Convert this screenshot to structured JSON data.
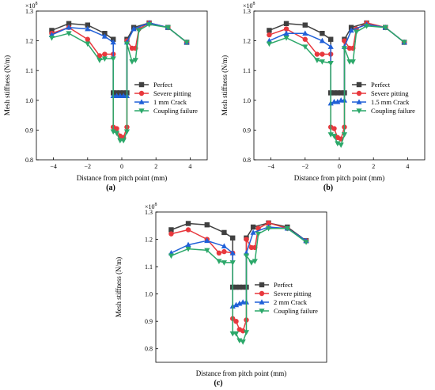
{
  "chart_data": [
    {
      "type": "line",
      "panel_label": "(a)",
      "xlabel": "Distance from pitch point (mm)",
      "ylabel": "Mesh stiffness (N/m)",
      "y_multiplier": "×10",
      "y_multiplier_exp": "8",
      "xlim": [
        -5,
        5
      ],
      "ylim": [
        0.8,
        1.3
      ],
      "xticks": [
        -4,
        -2,
        0,
        2,
        4
      ],
      "xtick_labels": [
        "−4",
        "−2",
        "0",
        "2",
        "4"
      ],
      "yticks": [
        0.8,
        0.9,
        1.0,
        1.1,
        1.2,
        1.3
      ],
      "ytick_labels": [
        "0.8",
        "0.9",
        "1.0",
        "1.1",
        "1.2",
        "1.3"
      ],
      "legend_position": "center",
      "series": [
        {
          "name": "Perfect",
          "color": "#404040",
          "marker": "square",
          "x": [
            -4.1,
            -3.1,
            -2.0,
            -1.0,
            -0.5,
            -0.5,
            -0.3,
            -0.1,
            0.1,
            0.3,
            0.3,
            0.7,
            1.6,
            2.7,
            3.8
          ],
          "y": [
            1.235,
            1.258,
            1.253,
            1.225,
            1.205,
            1.025,
            1.025,
            1.025,
            1.025,
            1.025,
            1.205,
            1.245,
            1.26,
            1.245,
            1.195
          ]
        },
        {
          "name": "Severe pitting",
          "color": "#e8383d",
          "marker": "circle",
          "x": [
            -4.1,
            -3.1,
            -2.0,
            -1.3,
            -1.0,
            -0.5,
            -0.5,
            -0.3,
            -0.1,
            0.1,
            0.3,
            0.3,
            0.6,
            0.8,
            1.0,
            1.6,
            2.7,
            3.8
          ],
          "y": [
            1.225,
            1.245,
            1.205,
            1.15,
            1.155,
            1.155,
            0.91,
            0.905,
            0.88,
            0.875,
            0.91,
            1.2,
            1.175,
            1.175,
            1.24,
            1.26,
            1.245,
            1.195
          ]
        },
        {
          "name": "1 mm Crack",
          "color": "#2060d8",
          "marker": "triangle-up",
          "x": [
            -4.1,
            -3.1,
            -2.0,
            -1.0,
            -0.5,
            -0.5,
            -0.3,
            -0.1,
            0.1,
            0.3,
            0.3,
            0.7,
            1.6,
            2.7,
            3.8
          ],
          "y": [
            1.22,
            1.245,
            1.24,
            1.215,
            1.195,
            1.015,
            1.015,
            1.015,
            1.015,
            1.015,
            1.195,
            1.24,
            1.26,
            1.245,
            1.195
          ]
        },
        {
          "name": "Coupling failure",
          "color": "#2ca86a",
          "marker": "triangle-down",
          "x": [
            -4.1,
            -3.1,
            -2.0,
            -1.3,
            -1.0,
            -0.5,
            -0.5,
            -0.3,
            -0.1,
            0.1,
            0.3,
            0.3,
            0.6,
            0.8,
            1.0,
            1.6,
            2.7,
            3.8
          ],
          "y": [
            1.21,
            1.225,
            1.19,
            1.135,
            1.14,
            1.14,
            0.895,
            0.89,
            0.865,
            0.865,
            0.895,
            1.19,
            1.13,
            1.135,
            1.235,
            1.255,
            1.245,
            1.195
          ]
        }
      ]
    },
    {
      "type": "line",
      "panel_label": "(b)",
      "xlabel": "Distance from pitch point (mm)",
      "ylabel": "Mesh stiffness (N/m)",
      "y_multiplier": "×10",
      "y_multiplier_exp": "8",
      "xlim": [
        -5,
        5
      ],
      "ylim": [
        0.8,
        1.3
      ],
      "xticks": [
        -4,
        -2,
        0,
        2,
        4
      ],
      "xtick_labels": [
        "−4",
        "−2",
        "0",
        "2",
        "4"
      ],
      "yticks": [
        0.8,
        0.9,
        1.0,
        1.1,
        1.2,
        1.3
      ],
      "ytick_labels": [
        "0.8",
        "0.9",
        "1.0",
        "1.1",
        "1.2",
        "1.3"
      ],
      "legend_position": "center",
      "series": [
        {
          "name": "Perfect",
          "color": "#404040",
          "marker": "square",
          "x": [
            -4.1,
            -3.1,
            -2.0,
            -1.0,
            -0.5,
            -0.5,
            -0.3,
            -0.1,
            0.1,
            0.3,
            0.3,
            0.7,
            1.6,
            2.7,
            3.8
          ],
          "y": [
            1.235,
            1.258,
            1.253,
            1.225,
            1.205,
            1.025,
            1.025,
            1.025,
            1.025,
            1.025,
            1.205,
            1.245,
            1.26,
            1.245,
            1.195
          ]
        },
        {
          "name": "Severe pitting",
          "color": "#e8383d",
          "marker": "circle",
          "x": [
            -4.1,
            -3.1,
            -2.0,
            -1.3,
            -1.0,
            -0.5,
            -0.5,
            -0.3,
            -0.1,
            0.1,
            0.3,
            0.3,
            0.6,
            0.8,
            1.0,
            1.6,
            2.7,
            3.8
          ],
          "y": [
            1.22,
            1.24,
            1.205,
            1.155,
            1.155,
            1.155,
            0.91,
            0.905,
            0.875,
            0.87,
            0.91,
            1.2,
            1.175,
            1.175,
            1.24,
            1.26,
            1.245,
            1.195
          ]
        },
        {
          "name": "1.5 mm Crack",
          "color": "#2060d8",
          "marker": "triangle-up",
          "x": [
            -4.1,
            -3.1,
            -2.0,
            -1.0,
            -0.5,
            -0.5,
            -0.3,
            -0.1,
            0.1,
            0.3,
            0.3,
            0.7,
            1.6,
            2.7,
            3.8
          ],
          "y": [
            1.2,
            1.225,
            1.225,
            1.2,
            1.18,
            0.99,
            0.995,
            0.995,
            1.0,
            1.0,
            1.18,
            1.235,
            1.255,
            1.245,
            1.195
          ]
        },
        {
          "name": "Coupling failure",
          "color": "#2ca86a",
          "marker": "triangle-down",
          "x": [
            -4.1,
            -3.1,
            -2.0,
            -1.3,
            -1.0,
            -0.5,
            -0.5,
            -0.3,
            -0.1,
            0.1,
            0.3,
            0.3,
            0.6,
            0.8,
            1.0,
            1.6,
            2.7,
            3.8
          ],
          "y": [
            1.19,
            1.21,
            1.18,
            1.135,
            1.13,
            1.125,
            0.885,
            0.88,
            0.855,
            0.85,
            0.885,
            1.175,
            1.13,
            1.13,
            1.23,
            1.25,
            1.245,
            1.195
          ]
        }
      ]
    },
    {
      "type": "line",
      "panel_label": "(c)",
      "xlabel": "Distance from pitch point (mm)",
      "ylabel": "Mesh stiffness (N/m)",
      "y_multiplier": "×10",
      "y_multiplier_exp": "8",
      "xlim": [
        -5,
        5
      ],
      "ylim": [
        0.75,
        1.3
      ],
      "xticks": [],
      "xtick_labels": [],
      "yticks": [
        0.8,
        0.9,
        1.0,
        1.1,
        1.2,
        1.3
      ],
      "ytick_labels": [
        "0.8",
        "0.9",
        "1.0",
        "1.1",
        "1.2",
        "1.3"
      ],
      "legend_position": "center",
      "series": [
        {
          "name": "Perfect",
          "color": "#404040",
          "marker": "square",
          "x": [
            -4.1,
            -3.1,
            -2.0,
            -1.0,
            -0.5,
            -0.5,
            -0.3,
            -0.1,
            0.1,
            0.3,
            0.3,
            0.7,
            1.6,
            2.7,
            3.8
          ],
          "y": [
            1.235,
            1.258,
            1.253,
            1.225,
            1.205,
            1.025,
            1.025,
            1.025,
            1.025,
            1.025,
            1.205,
            1.245,
            1.26,
            1.245,
            1.195
          ]
        },
        {
          "name": "Severe pitting",
          "color": "#e8383d",
          "marker": "circle",
          "x": [
            -4.1,
            -3.1,
            -2.0,
            -1.3,
            -1.0,
            -0.5,
            -0.5,
            -0.3,
            -0.1,
            0.1,
            0.3,
            0.3,
            0.6,
            0.8,
            1.0,
            1.6,
            2.7,
            3.8
          ],
          "y": [
            1.22,
            1.235,
            1.2,
            1.15,
            1.155,
            1.15,
            0.91,
            0.9,
            0.87,
            0.865,
            0.905,
            1.2,
            1.17,
            1.17,
            1.24,
            1.26,
            1.24,
            1.195
          ]
        },
        {
          "name": "2 mm Crack",
          "color": "#2060d8",
          "marker": "triangle-up",
          "x": [
            -4.1,
            -3.1,
            -2.0,
            -1.0,
            -0.5,
            -0.5,
            -0.3,
            -0.1,
            0.1,
            0.3,
            0.3,
            0.7,
            1.6,
            2.7,
            3.8
          ],
          "y": [
            1.15,
            1.18,
            1.195,
            1.175,
            1.15,
            0.955,
            0.96,
            0.965,
            0.97,
            0.97,
            1.15,
            1.225,
            1.245,
            1.24,
            1.195
          ]
        },
        {
          "name": "Coupling failure",
          "color": "#2ca86a",
          "marker": "triangle-down",
          "x": [
            -4.1,
            -3.1,
            -2.0,
            -1.3,
            -1.0,
            -0.5,
            -0.5,
            -0.3,
            -0.1,
            0.1,
            0.3,
            0.3,
            0.6,
            0.8,
            1.0,
            1.6,
            2.7,
            3.8
          ],
          "y": [
            1.14,
            1.165,
            1.16,
            1.12,
            1.115,
            1.115,
            0.855,
            0.855,
            0.83,
            0.825,
            0.86,
            1.14,
            1.115,
            1.12,
            1.22,
            1.24,
            1.24,
            1.19
          ]
        }
      ]
    }
  ]
}
